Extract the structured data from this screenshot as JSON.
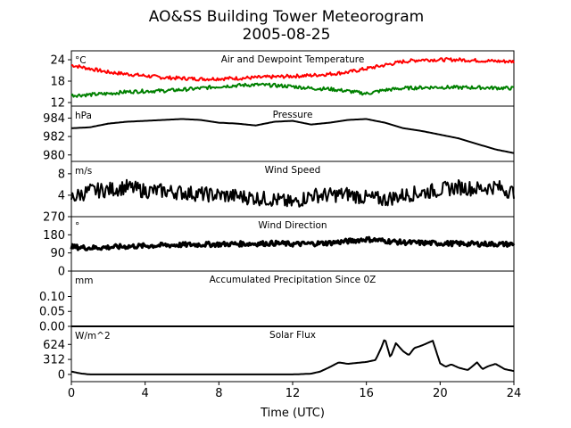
{
  "figure": {
    "title_line1": "AO&SS Building Tower Meteorogram",
    "title_line2": "2005-08-25",
    "xlabel": "Time (UTC)",
    "xticks": [
      "0",
      "4",
      "8",
      "12",
      "16",
      "20",
      "24"
    ]
  },
  "colors": {
    "temperature": "#ff0000",
    "dewpoint": "#008000",
    "line": "#000000"
  },
  "chart_data": [
    {
      "type": "line",
      "title": "Air and Dewpoint Temperature",
      "unit": "°C",
      "xlim": [
        0,
        24
      ],
      "ylim": [
        11,
        26.5
      ],
      "yticks": [
        12,
        18,
        24
      ],
      "x": [
        0,
        1,
        2,
        3,
        4,
        5,
        6,
        7,
        8,
        9,
        10,
        11,
        12,
        13,
        14,
        15,
        16,
        17,
        18,
        19,
        20,
        21,
        22,
        23,
        24
      ],
      "series": [
        {
          "key": "temperature",
          "values": [
            22.5,
            21.5,
            20.5,
            20,
            19.5,
            19,
            18.8,
            18.6,
            18.7,
            18.8,
            19,
            19.2,
            19.4,
            19.6,
            20,
            20.5,
            21.5,
            22.5,
            23.5,
            24,
            24,
            24,
            23.8,
            23.6,
            23.5
          ]
        },
        {
          "key": "dewpoint",
          "values": [
            14,
            14.2,
            14.5,
            15,
            15.2,
            15.3,
            15.6,
            16,
            16.5,
            16.8,
            17,
            16.8,
            16.5,
            16,
            15.8,
            15.2,
            14.5,
            15.5,
            16,
            16.2,
            16.3,
            16.2,
            16.2,
            16.1,
            16
          ]
        }
      ]
    },
    {
      "type": "line",
      "title": "Pressure",
      "unit": "hPa",
      "xlim": [
        0,
        24
      ],
      "ylim": [
        979.3,
        985.3
      ],
      "yticks": [
        980,
        982,
        984
      ],
      "x": [
        0,
        1,
        2,
        3,
        4,
        5,
        6,
        7,
        8,
        9,
        10,
        11,
        12,
        13,
        14,
        15,
        16,
        17,
        18,
        19,
        20,
        21,
        22,
        23,
        24
      ],
      "series": [
        {
          "key": "line",
          "values": [
            982.9,
            983,
            983.4,
            983.6,
            983.7,
            983.8,
            983.9,
            983.8,
            983.5,
            983.4,
            983.2,
            983.6,
            983.7,
            983.3,
            983.5,
            983.8,
            983.9,
            983.5,
            982.9,
            982.6,
            982.2,
            981.8,
            981.2,
            980.6,
            980.2
          ]
        }
      ]
    },
    {
      "type": "line",
      "title": "Wind Speed",
      "unit": "m/s",
      "xlim": [
        0,
        24
      ],
      "ylim": [
        0,
        10.3
      ],
      "yticks": [
        0,
        4,
        8
      ],
      "x": [
        0,
        1,
        2,
        3,
        4,
        5,
        6,
        7,
        8,
        9,
        10,
        11,
        12,
        13,
        14,
        15,
        16,
        17,
        18,
        19,
        20,
        21,
        22,
        23,
        24
      ],
      "series": [
        {
          "key": "line",
          "values": [
            3.5,
            4.8,
            5,
            5.5,
            4.8,
            4.8,
            4.5,
            4.2,
            4,
            3.8,
            3.5,
            3.2,
            2.5,
            4,
            4,
            4.2,
            3.5,
            3.2,
            4,
            4.5,
            5,
            5.5,
            5.2,
            5.6,
            4.5
          ]
        }
      ]
    },
    {
      "type": "scatter",
      "title": "Wind Direction",
      "unit": "°",
      "xlim": [
        0,
        24
      ],
      "ylim": [
        0,
        270
      ],
      "yticks": [
        0,
        90,
        180,
        270
      ],
      "x": [
        0,
        1,
        2,
        3,
        4,
        5,
        6,
        7,
        8,
        9,
        10,
        11,
        12,
        13,
        14,
        15,
        16,
        17,
        18,
        19,
        20,
        21,
        22,
        23,
        24
      ],
      "series": [
        {
          "key": "line",
          "values": [
            120,
            115,
            118,
            122,
            125,
            128,
            130,
            132,
            133,
            135,
            136,
            138,
            134,
            136,
            140,
            148,
            158,
            150,
            142,
            140,
            138,
            136,
            135,
            134,
            133
          ]
        }
      ]
    },
    {
      "type": "line",
      "title": "Accumulated Precipitation Since 0Z",
      "unit": "mm",
      "xlim": [
        0,
        24
      ],
      "ylim": [
        0,
        0.185
      ],
      "yticks": [
        0,
        0.05,
        0.1
      ],
      "ytick_labels": [
        "0.00",
        "0.05",
        "0.10"
      ],
      "x": [
        0,
        24
      ],
      "series": [
        {
          "key": "line",
          "values": [
            0,
            0
          ]
        }
      ]
    },
    {
      "type": "line",
      "title": "Solar Flux",
      "unit": "W/m^2",
      "xlim": [
        0,
        24
      ],
      "ylim": [
        -150,
        1000
      ],
      "yticks": [
        0,
        312,
        624
      ],
      "x": [
        0,
        0.5,
        1,
        2,
        4,
        6,
        8,
        10,
        12,
        13,
        13.5,
        14,
        14.5,
        15,
        15.5,
        16,
        16.5,
        16.8,
        17,
        17.3,
        17.6,
        18,
        18.3,
        18.6,
        19,
        19.3,
        19.6,
        20,
        20.3,
        20.6,
        21,
        21.5,
        22,
        22.3,
        22.6,
        23,
        23.5,
        24
      ],
      "series": [
        {
          "key": "line",
          "values": [
            60,
            20,
            0,
            0,
            0,
            0,
            0,
            0,
            0,
            15,
            60,
            150,
            250,
            220,
            240,
            260,
            300,
            550,
            750,
            350,
            650,
            480,
            400,
            550,
            600,
            650,
            700,
            230,
            160,
            210,
            140,
            90,
            250,
            110,
            170,
            220,
            110,
            70
          ]
        }
      ]
    }
  ]
}
